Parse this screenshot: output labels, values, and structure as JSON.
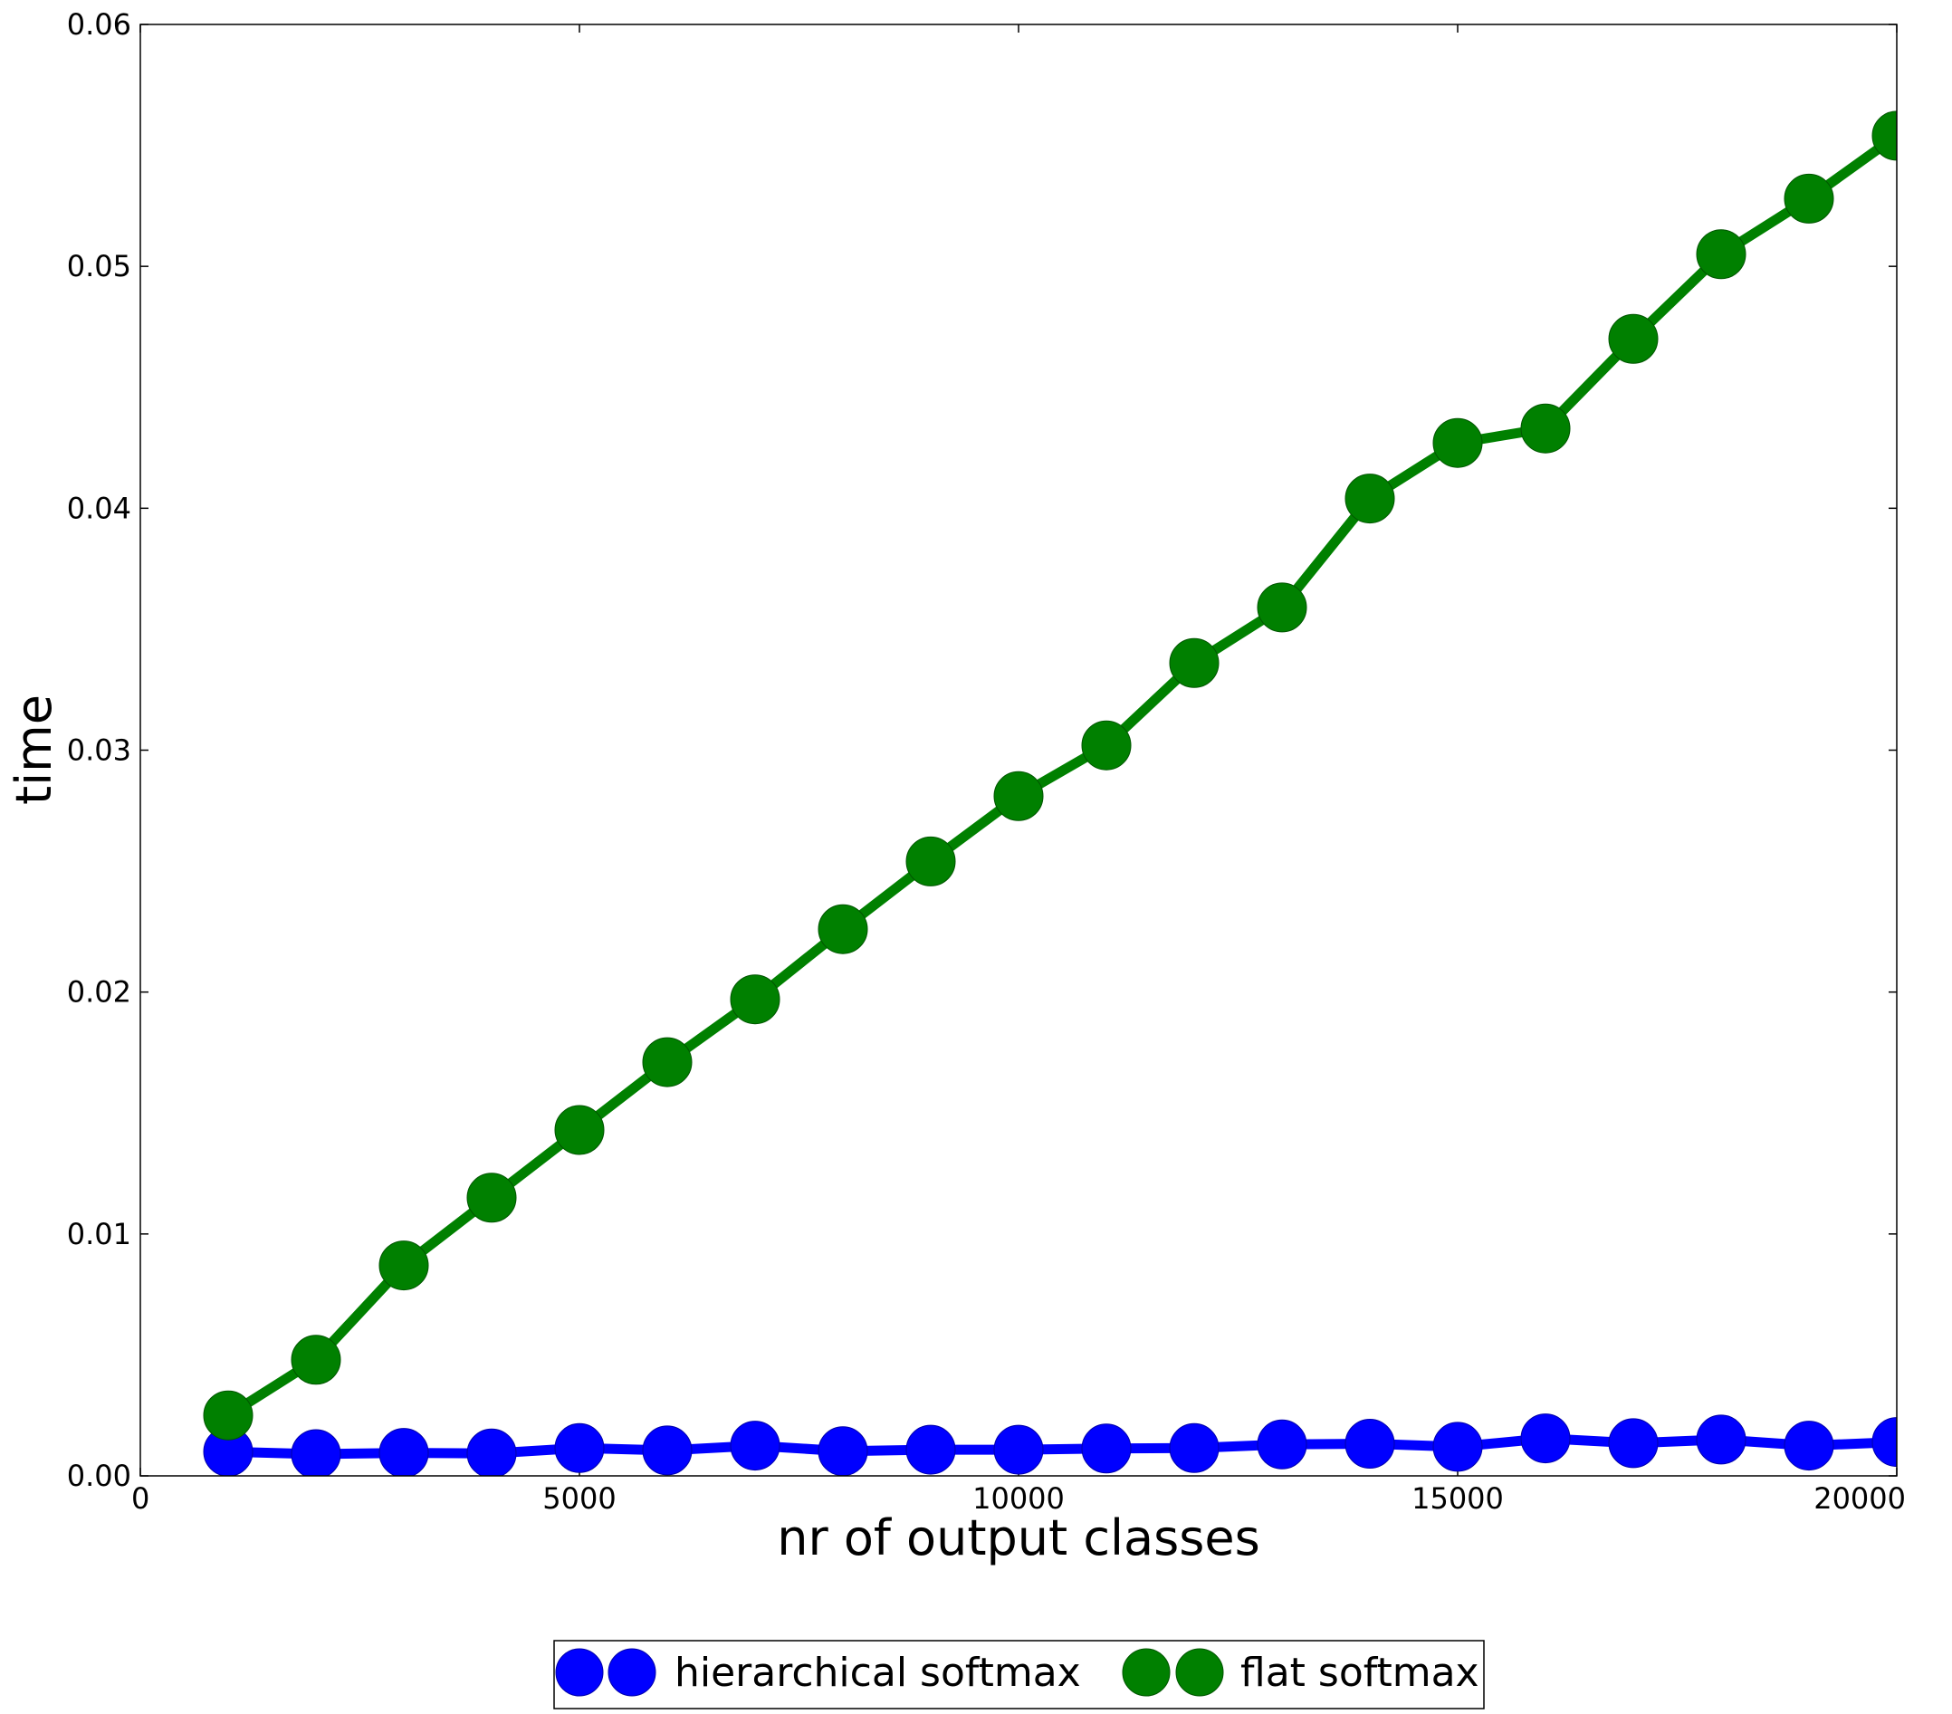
{
  "chart_data": {
    "type": "line",
    "title": "",
    "xlabel": "nr of output classes",
    "ylabel": "time",
    "xlim": [
      0,
      20000
    ],
    "ylim": [
      0,
      0.06
    ],
    "xticks": [
      0,
      5000,
      10000,
      15000,
      20000
    ],
    "xtick_labels": [
      "0",
      "5000",
      "10000",
      "15000",
      "20000"
    ],
    "yticks": [
      0,
      0.01,
      0.02,
      0.03,
      0.04,
      0.05,
      0.06
    ],
    "ytick_labels": [
      "0.00",
      "0.01",
      "0.02",
      "0.03",
      "0.04",
      "0.05",
      "0.06"
    ],
    "grid": false,
    "legend_position": "bottom-center, below plot",
    "x": [
      1000,
      2000,
      3000,
      4000,
      5000,
      6000,
      7000,
      8000,
      9000,
      10000,
      11000,
      12000,
      13000,
      14000,
      15000,
      16000,
      17000,
      18000,
      19000,
      20000
    ],
    "series": [
      {
        "name": "hierarchical softmax",
        "color": "#0000ff",
        "values": [
          0.001,
          0.0009,
          0.00095,
          0.00093,
          0.00115,
          0.00105,
          0.00125,
          0.00102,
          0.00108,
          0.00108,
          0.00113,
          0.00115,
          0.0013,
          0.00133,
          0.0012,
          0.00155,
          0.00135,
          0.0015,
          0.00125,
          0.0014
        ]
      },
      {
        "name": "flat softmax",
        "color": "#008000",
        "values": [
          0.0025,
          0.0048,
          0.0087,
          0.0115,
          0.0143,
          0.0171,
          0.0197,
          0.0226,
          0.0254,
          0.0281,
          0.0302,
          0.0336,
          0.0359,
          0.0404,
          0.0427,
          0.0433,
          0.047,
          0.0505,
          0.0528,
          0.0554
        ]
      }
    ]
  }
}
